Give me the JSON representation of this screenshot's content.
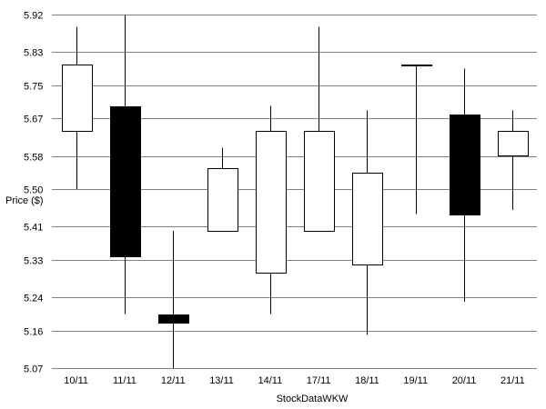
{
  "chart_data": {
    "type": "candlestick",
    "title": "",
    "xlabel": "StockDataWKW",
    "ylabel": "Price ($)",
    "ylim": [
      5.07,
      5.92
    ],
    "yticks": [
      "5.92",
      "5.83",
      "5.75",
      "5.67",
      "5.58",
      "5.50",
      "5.41",
      "5.33",
      "5.24",
      "5.16",
      "5.07"
    ],
    "grid": true,
    "categories": [
      "10/11",
      "11/11",
      "12/11",
      "13/11",
      "14/11",
      "17/11",
      "18/11",
      "19/11",
      "20/11",
      "21/11"
    ],
    "series": [
      {
        "name": "10/11",
        "open": 5.64,
        "high": 5.89,
        "low": 5.5,
        "close": 5.8
      },
      {
        "name": "11/11",
        "open": 5.7,
        "high": 5.92,
        "low": 5.2,
        "close": 5.34
      },
      {
        "name": "12/11",
        "open": 5.2,
        "high": 5.4,
        "low": 5.07,
        "close": 5.18
      },
      {
        "name": "13/11",
        "open": 5.4,
        "high": 5.6,
        "low": 5.4,
        "close": 5.55
      },
      {
        "name": "14/11",
        "open": 5.3,
        "high": 5.7,
        "low": 5.2,
        "close": 5.64
      },
      {
        "name": "17/11",
        "open": 5.4,
        "high": 5.89,
        "low": 5.4,
        "close": 5.64
      },
      {
        "name": "18/11",
        "open": 5.32,
        "high": 5.69,
        "low": 5.15,
        "close": 5.54
      },
      {
        "name": "19/11",
        "open": 5.8,
        "high": 5.8,
        "low": 5.44,
        "close": 5.8
      },
      {
        "name": "20/11",
        "open": 5.68,
        "high": 5.79,
        "low": 5.23,
        "close": 5.44
      },
      {
        "name": "21/11",
        "open": 5.58,
        "high": 5.69,
        "low": 5.45,
        "close": 5.64
      }
    ]
  }
}
